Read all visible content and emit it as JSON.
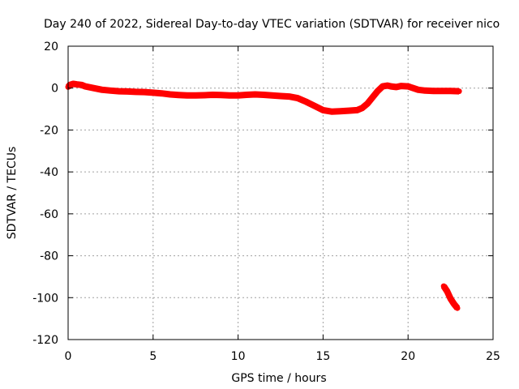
{
  "chart_data": {
    "type": "line",
    "title": "Day 240 of 2022, Sidereal Day-to-day VTEC variation (SDTVAR) for receiver nico",
    "xlabel": "GPS time / hours",
    "ylabel": "SDTVAR / TECUs",
    "xlim": [
      0,
      25
    ],
    "ylim": [
      -120,
      20
    ],
    "xticks": [
      0,
      5,
      10,
      15,
      20,
      25
    ],
    "yticks": [
      20,
      0,
      -20,
      -40,
      -60,
      -80,
      -100,
      -120
    ],
    "grid": true,
    "series": [
      {
        "name": "SDTVAR",
        "color": "#ff0000",
        "segments": [
          [
            [
              0.0,
              0.5
            ],
            [
              0.1,
              1.5
            ],
            [
              0.3,
              2.0
            ],
            [
              0.5,
              1.8
            ],
            [
              0.8,
              1.5
            ],
            [
              1.0,
              0.8
            ],
            [
              1.5,
              0.0
            ],
            [
              2.0,
              -0.8
            ],
            [
              2.5,
              -1.2
            ],
            [
              3.0,
              -1.5
            ],
            [
              3.5,
              -1.6
            ],
            [
              4.0,
              -1.8
            ],
            [
              4.5,
              -1.9
            ],
            [
              5.0,
              -2.2
            ],
            [
              5.5,
              -2.5
            ],
            [
              6.0,
              -3.0
            ],
            [
              6.5,
              -3.3
            ],
            [
              7.0,
              -3.5
            ],
            [
              7.5,
              -3.5
            ],
            [
              8.0,
              -3.4
            ],
            [
              8.5,
              -3.2
            ],
            [
              9.0,
              -3.3
            ],
            [
              9.5,
              -3.5
            ],
            [
              10.0,
              -3.5
            ],
            [
              10.5,
              -3.2
            ],
            [
              11.0,
              -3.0
            ],
            [
              11.5,
              -3.2
            ],
            [
              12.0,
              -3.5
            ],
            [
              12.5,
              -3.8
            ],
            [
              13.0,
              -4.0
            ],
            [
              13.5,
              -4.8
            ],
            [
              14.0,
              -6.5
            ],
            [
              14.5,
              -8.5
            ],
            [
              15.0,
              -10.5
            ],
            [
              15.5,
              -11.2
            ],
            [
              16.0,
              -11.0
            ],
            [
              16.5,
              -10.8
            ],
            [
              17.0,
              -10.5
            ],
            [
              17.3,
              -9.5
            ],
            [
              17.6,
              -7.5
            ],
            [
              17.9,
              -4.5
            ],
            [
              18.2,
              -1.5
            ],
            [
              18.5,
              0.8
            ],
            [
              18.8,
              1.2
            ],
            [
              19.0,
              0.8
            ],
            [
              19.3,
              0.5
            ],
            [
              19.6,
              1.0
            ],
            [
              20.0,
              0.8
            ],
            [
              20.3,
              0.0
            ],
            [
              20.6,
              -0.8
            ],
            [
              21.0,
              -1.2
            ],
            [
              21.5,
              -1.4
            ],
            [
              22.0,
              -1.4
            ],
            [
              22.5,
              -1.4
            ],
            [
              23.0,
              -1.5
            ]
          ],
          [
            [
              22.1,
              -94.5
            ],
            [
              22.3,
              -97.0
            ],
            [
              22.5,
              -100.5
            ],
            [
              22.7,
              -103.0
            ],
            [
              22.9,
              -105.0
            ]
          ]
        ]
      }
    ]
  }
}
